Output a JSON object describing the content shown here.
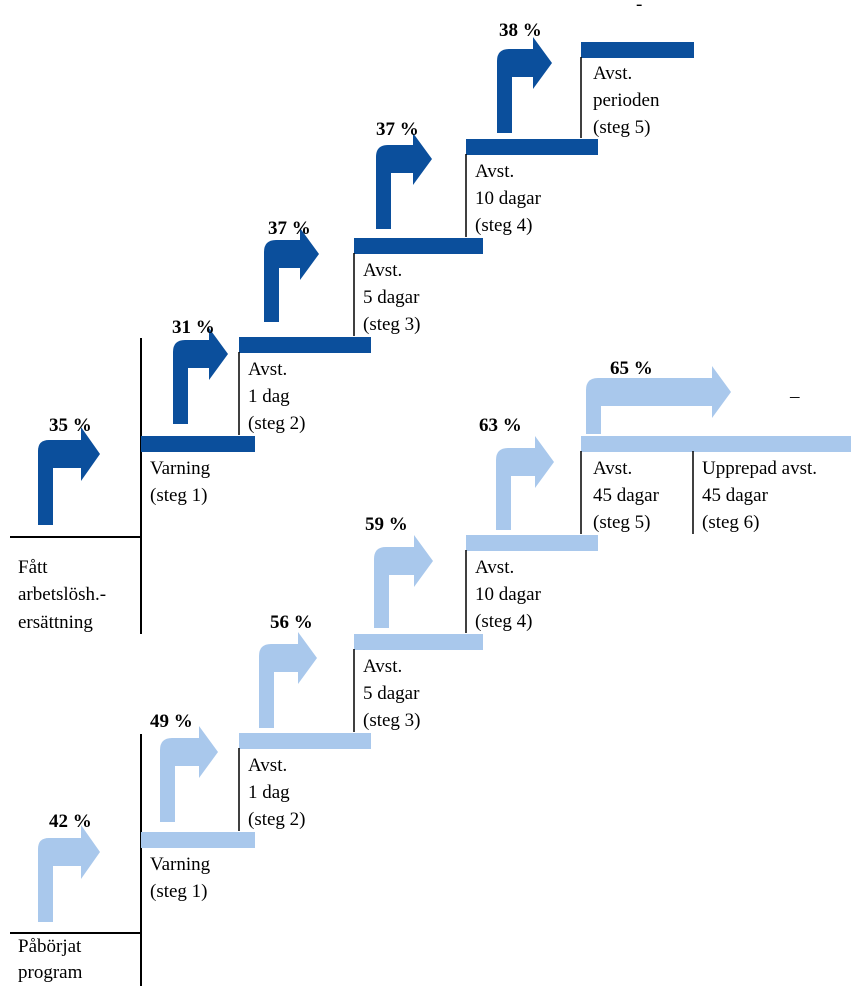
{
  "colors": {
    "dark": "#0b4f9c",
    "light": "#a9c8ec",
    "line": "#000000"
  },
  "upper": {
    "start_label": [
      "Fått",
      "arbetslösh.-",
      "ersättning"
    ],
    "steps": [
      {
        "pct": "35 %",
        "label": [
          "Varning",
          "(steg 1)"
        ]
      },
      {
        "pct": "31 %",
        "label": [
          "Avst.",
          "1 dag",
          "(steg 2)"
        ]
      },
      {
        "pct": "37 %",
        "label": [
          "Avst.",
          "5 dagar",
          "(steg 3)"
        ]
      },
      {
        "pct": "37 %",
        "label": [
          "Avst.",
          "10 dagar",
          "(steg 4)"
        ]
      },
      {
        "pct": "38 %",
        "label": [
          "Avst.",
          "perioden",
          "(steg 5)"
        ]
      }
    ],
    "dash": "-"
  },
  "lower": {
    "start_label": [
      "Påbörjat",
      "program"
    ],
    "steps": [
      {
        "pct": "42 %",
        "label": [
          "Varning",
          "(steg 1)"
        ]
      },
      {
        "pct": "49 %",
        "label": [
          "Avst.",
          "1 dag",
          "(steg 2)"
        ]
      },
      {
        "pct": "56 %",
        "label": [
          "Avst.",
          "5 dagar",
          "(steg 3)"
        ]
      },
      {
        "pct": "59 %",
        "label": [
          "Avst.",
          "10 dagar",
          "(steg 4)"
        ]
      },
      {
        "pct": "63 %",
        "label": [
          "Avst.",
          "45 dagar",
          "(steg 5)"
        ]
      },
      {
        "pct": "65 %",
        "label": [
          "Upprepad avst.",
          "45 dagar",
          "(steg 6)"
        ]
      }
    ],
    "dash": "–"
  }
}
